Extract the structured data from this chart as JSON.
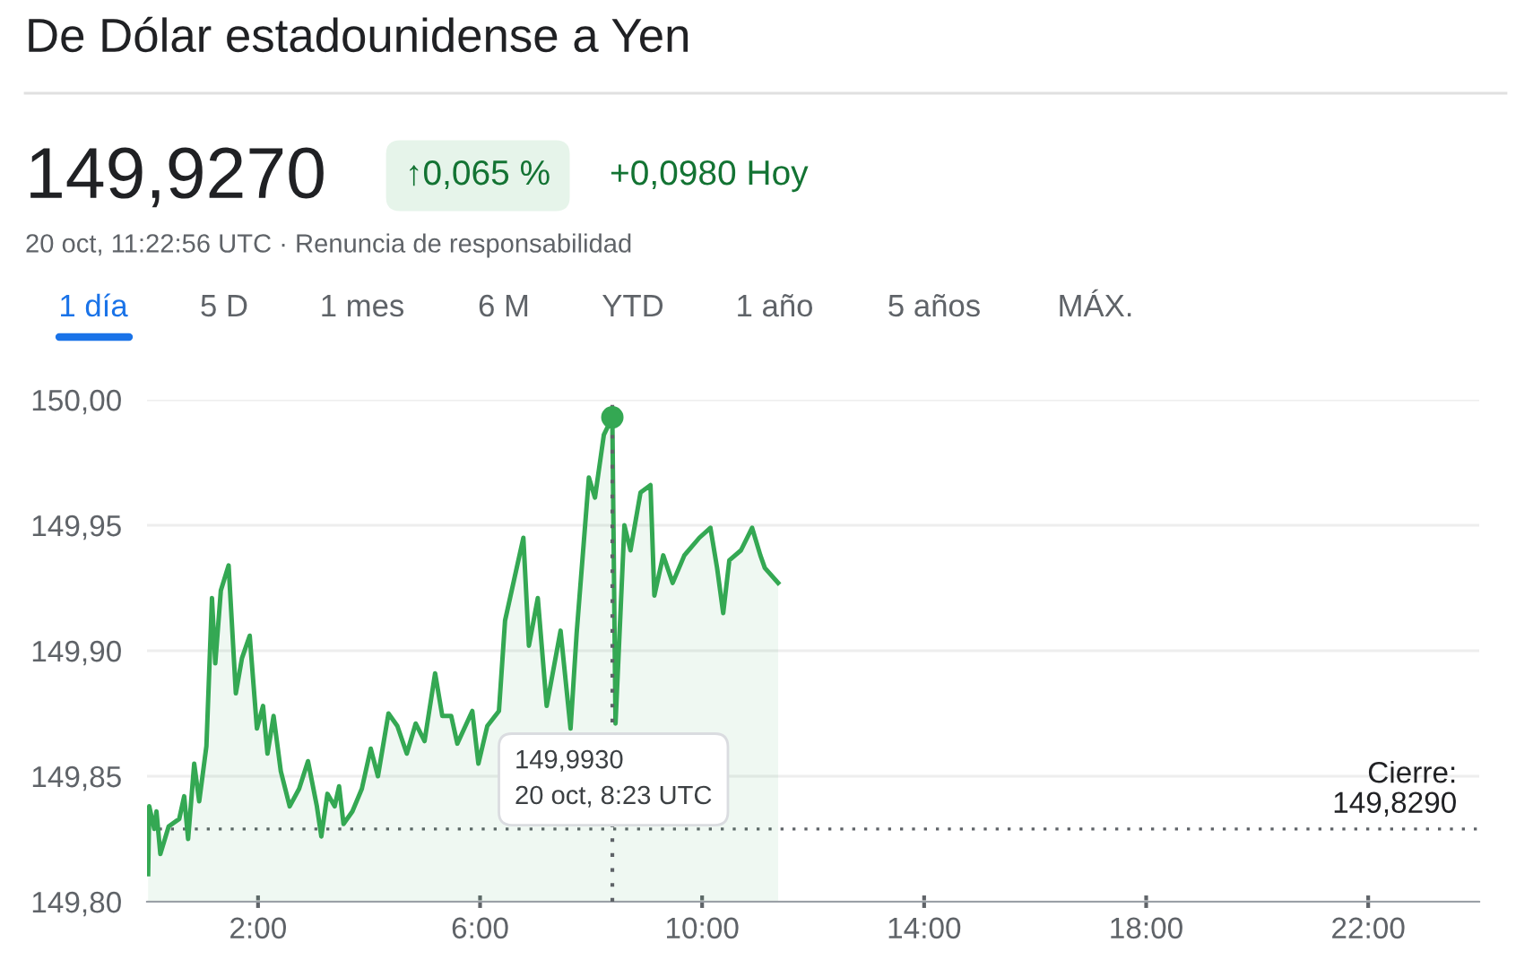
{
  "chart_data": {
    "type": "area",
    "title": "De Dólar estadounidense a Yen",
    "annotations": [
      "149,9270",
      "↑0,065 %",
      "+0,0980 Hoy",
      "20 oct, 11:22:56 UTC · Renuncia de responsabilidad",
      "1 día",
      "5 D",
      "1 mes",
      "6 M",
      "YTD",
      "1 año",
      "5 años",
      "MÁX.",
      "149,9930\n20 oct, 8:23 UTC"
    ],
    "series": [
      {
        "color": "#34a853",
        "x": [
          0.02,
          0.04,
          0.13,
          0.17,
          0.24,
          0.39,
          0.58,
          0.67,
          0.74,
          0.85,
          0.94,
          1.07,
          1.17,
          1.23,
          1.33,
          1.47,
          1.6,
          1.71,
          1.85,
          1.98,
          2.09,
          2.17,
          2.28,
          2.41,
          2.57,
          2.74,
          2.9,
          3.06,
          3.14,
          3.25,
          3.38,
          3.46,
          3.54,
          3.7,
          3.87,
          4.03,
          4.16,
          4.35,
          4.51,
          4.68,
          4.84,
          5.0,
          5.19,
          5.32,
          5.48,
          5.59,
          5.86,
          5.97,
          6.13,
          6.34,
          6.45,
          6.61,
          6.78,
          6.88,
          7.04,
          7.2,
          7.45,
          7.63,
          7.74,
          7.96,
          8.07,
          8.23,
          8.383,
          8.44,
          8.6,
          8.71,
          8.89,
          9.07,
          9.14,
          9.3,
          9.47,
          9.68,
          9.95,
          10.15,
          10.27,
          10.38,
          10.49,
          10.7,
          10.9,
          11.05,
          11.13,
          11.37
        ],
        "values": [
          149.811,
          149.838,
          149.829,
          149.836,
          149.819,
          149.83,
          149.833,
          149.842,
          149.825,
          149.855,
          149.84,
          149.862,
          149.921,
          149.895,
          149.924,
          149.934,
          149.883,
          149.897,
          149.906,
          149.869,
          149.878,
          149.859,
          149.874,
          149.852,
          149.838,
          149.845,
          149.856,
          149.838,
          149.826,
          149.843,
          149.838,
          149.846,
          149.831,
          149.836,
          149.845,
          149.861,
          149.85,
          149.875,
          149.87,
          149.859,
          149.871,
          149.864,
          149.891,
          149.874,
          149.874,
          149.863,
          149.876,
          149.855,
          149.87,
          149.876,
          149.912,
          149.928,
          149.945,
          149.902,
          149.921,
          149.878,
          149.908,
          149.869,
          149.907,
          149.969,
          149.961,
          149.986,
          149.993,
          149.871,
          149.95,
          149.94,
          149.963,
          149.966,
          149.922,
          149.938,
          149.927,
          149.938,
          149.945,
          149.949,
          149.933,
          149.915,
          149.936,
          149.94,
          149.949,
          149.938,
          149.933,
          149.927
        ]
      },
      {
        "type": "scatter",
        "color": "#34a853",
        "marker": "circle",
        "x": [
          8.383
        ],
        "values": [
          149.993
        ]
      }
    ],
    "xlim": [
      0,
      24
    ],
    "xticks": [
      {
        "value": 2,
        "label": "2:00"
      },
      {
        "value": 6,
        "label": "6:00"
      },
      {
        "value": 10,
        "label": "10:00"
      },
      {
        "value": 14,
        "label": "14:00"
      },
      {
        "value": 18,
        "label": "18:00"
      },
      {
        "value": 22,
        "label": "22:00"
      }
    ],
    "ylim": [
      149.8,
      150.0
    ],
    "yticks": [
      {
        "value": 149.8,
        "label": "149,80"
      },
      {
        "value": 149.85,
        "label": "149,85"
      },
      {
        "value": 149.9,
        "label": "149,90"
      },
      {
        "value": 149.95,
        "label": "149,95"
      },
      {
        "value": 150.0,
        "label": "150,00"
      }
    ],
    "ref_lines": [
      {
        "axis": "y",
        "value": 149.829,
        "label": "Cierre:\n149,8290",
        "color": "#5f6368",
        "line_style": "dotted"
      },
      {
        "axis": "x",
        "value": 8.383,
        "color": "#5f6368",
        "line_style": "dotted"
      }
    ],
    "grid": "y"
  }
}
